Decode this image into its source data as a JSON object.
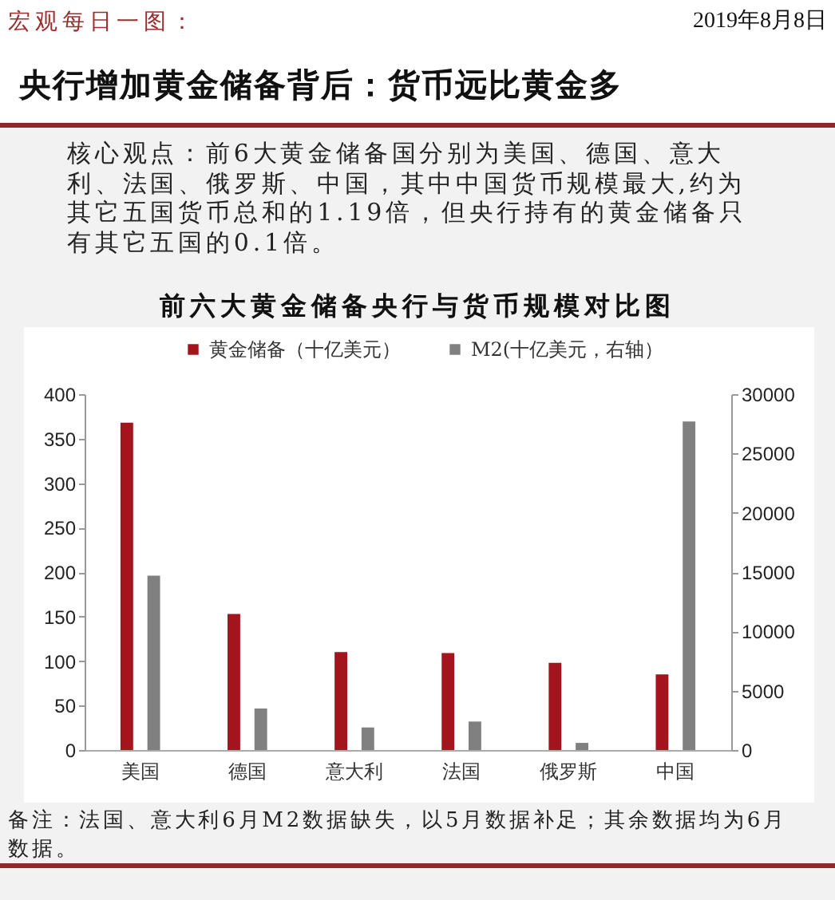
{
  "chart_data": {
    "type": "bar",
    "title": "央行增加黄金储备背后：货币远比黄金多",
    "subtitle": "前六大黄金储备央行与货币规模对比图",
    "annotations": [
      "宏观每日一图：",
      "2019年8月8日",
      "核心观点：前6大黄金储备国分别为美国、德国、意大利、法国、俄罗斯、中国，其中中国货币规模最大,约为其它五国货币总和的1.19倍，但央行持有的黄金储备只有其它五国的0.1倍。",
      "备注：法国、意大利6月M2数据缺失，以5月数据补足；其余数据均为6月数据。"
    ],
    "categories": [
      "美国",
      "德国",
      "意大利",
      "法国",
      "俄罗斯",
      "中国"
    ],
    "series": [
      {
        "name": "黄金储备（十亿美元）",
        "color": "#a3141c",
        "values": [
          368,
          153,
          110,
          109,
          98,
          85
        ]
      },
      {
        "name": "M2(十亿美元，右轴）",
        "color": "#808080",
        "axis": "y2",
        "values": [
          14700,
          3500,
          1900,
          2400,
          600,
          27700
        ]
      }
    ],
    "ylim": [
      0,
      400
    ],
    "yticks": [
      0,
      50,
      100,
      150,
      200,
      250,
      300,
      350,
      400
    ],
    "y2lim": [
      0,
      30000
    ],
    "y2ticks": [
      0,
      5000,
      10000,
      15000,
      20000,
      25000,
      30000
    ],
    "legend": "top"
  }
}
